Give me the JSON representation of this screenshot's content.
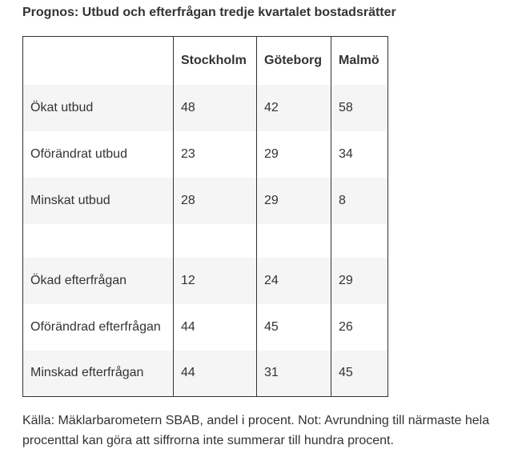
{
  "title": "Prognos: Utbud och efterfrågan tredje kvartalet bostadsrätter",
  "table": {
    "headers": [
      "",
      "Stockholm",
      "Göteborg",
      "Malmö"
    ],
    "rows": [
      [
        "Ökat utbud",
        "48",
        "42",
        "58"
      ],
      [
        "Oförändrat utbud",
        "23",
        "29",
        "34"
      ],
      [
        "Minskat utbud",
        "28",
        "29",
        "8"
      ],
      [
        "",
        "",
        "",
        ""
      ],
      [
        "Ökad efterfrågan",
        "12",
        "24",
        "29"
      ],
      [
        "Oförändrad efterfrågan",
        "44",
        "45",
        "26"
      ],
      [
        "Minskad efterfrågan",
        "44",
        "31",
        "45"
      ]
    ]
  },
  "footnote": "Källa: Mäklarbarometern SBAB, andel i procent. Not: Avrundning till närmaste hela procenttal kan göra att siffrorna inte summerar till hundra procent."
}
